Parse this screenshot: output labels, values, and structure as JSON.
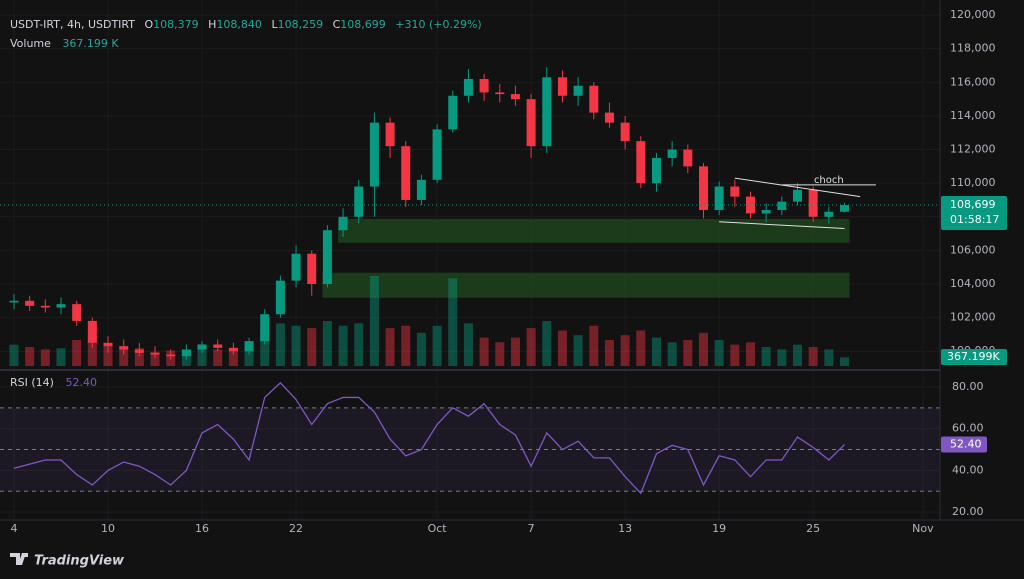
{
  "header": {
    "symbol": "USDT-IRT, 4h, USDTIRT",
    "open_label": "O",
    "open": "108,379",
    "high_label": "H",
    "high": "108,840",
    "low_label": "L",
    "low": "108,259",
    "close_label": "C",
    "close": "108,699",
    "change": "+310 (+0.29%)",
    "volume_label": "Volume",
    "volume_value": "367.199 K"
  },
  "chart_data": [
    {
      "type": "candlestick",
      "categories": [
        "4",
        null,
        null,
        null,
        null,
        null,
        "10",
        null,
        null,
        null,
        null,
        null,
        "16",
        null,
        null,
        null,
        null,
        null,
        "22",
        null,
        null,
        null,
        null,
        null,
        null,
        null,
        null,
        "Oct",
        null,
        null,
        null,
        null,
        null,
        "7",
        null,
        null,
        null,
        null,
        null,
        "13",
        null,
        null,
        null,
        null,
        null,
        "19",
        null,
        null,
        null,
        null,
        null,
        "25",
        null,
        null,
        null,
        null,
        null,
        null,
        "Nov"
      ],
      "open": [
        102900,
        103000,
        102700,
        102600,
        102800,
        101800,
        100500,
        100300,
        100100,
        99900,
        99800,
        99700,
        100100,
        100400,
        100200,
        100000,
        100600,
        102200,
        104200,
        105800,
        104000,
        107200,
        108000,
        109800,
        113600,
        112200,
        109000,
        110200,
        113200,
        115200,
        116200,
        115400,
        115300,
        115000,
        112200,
        116300,
        115200,
        115800,
        114200,
        113600,
        112500,
        110000,
        111500,
        112000,
        111000,
        108400,
        109800,
        109200,
        108200,
        108400,
        108900,
        109600,
        108000,
        108300,
        null,
        null,
        null,
        null,
        null
      ],
      "high": [
        103400,
        103300,
        103100,
        103200,
        103000,
        102000,
        100900,
        100700,
        100500,
        100300,
        100100,
        100400,
        100600,
        100700,
        100500,
        100800,
        102500,
        104500,
        106300,
        106000,
        107500,
        108500,
        110200,
        114200,
        113900,
        112500,
        110500,
        113500,
        115500,
        116800,
        116500,
        115900,
        115800,
        115300,
        116900,
        116700,
        116300,
        116000,
        114800,
        114000,
        112800,
        111800,
        112500,
        112300,
        111200,
        110100,
        110200,
        109500,
        108800,
        109200,
        110000,
        109800,
        108600,
        108840,
        null,
        null,
        null,
        null,
        null
      ],
      "low": [
        102500,
        102400,
        102300,
        102200,
        101500,
        100200,
        99900,
        99800,
        99700,
        99600,
        99500,
        99500,
        99900,
        100000,
        99800,
        99800,
        100400,
        102000,
        103800,
        103300,
        103800,
        106800,
        107600,
        108000,
        111500,
        108600,
        108700,
        110000,
        113000,
        114800,
        114900,
        114800,
        114600,
        111500,
        111800,
        114800,
        114600,
        113800,
        113300,
        112000,
        109700,
        109500,
        111000,
        110600,
        107900,
        108100,
        108600,
        107900,
        107700,
        108100,
        108700,
        107700,
        107600,
        108259,
        null,
        null,
        null,
        null,
        null
      ],
      "close": [
        103000,
        102700,
        102600,
        102800,
        101800,
        100500,
        100300,
        100100,
        99900,
        99800,
        99700,
        100100,
        100400,
        100200,
        100000,
        100600,
        102200,
        104200,
        105800,
        104000,
        107200,
        108000,
        109800,
        113600,
        112200,
        109000,
        110200,
        113200,
        115200,
        116200,
        115400,
        115300,
        115000,
        112200,
        116300,
        115200,
        115800,
        114200,
        113600,
        112500,
        110000,
        111500,
        112000,
        111000,
        108400,
        109800,
        109200,
        108200,
        108400,
        108900,
        109600,
        108000,
        108300,
        108699,
        null,
        null,
        null,
        null,
        null
      ],
      "volume": [
        900,
        800,
        700,
        750,
        1100,
        1300,
        900,
        700,
        750,
        600,
        650,
        700,
        800,
        700,
        650,
        800,
        1500,
        1800,
        1700,
        1600,
        1900,
        1700,
        1800,
        3800,
        1600,
        1700,
        1400,
        1700,
        3700,
        1800,
        1200,
        1000,
        1200,
        1600,
        1900,
        1500,
        1300,
        1700,
        1100,
        1300,
        1500,
        1200,
        1000,
        1100,
        1400,
        1100,
        900,
        1000,
        800,
        700,
        900,
        800,
        700,
        367.199,
        null,
        null,
        null,
        null,
        null
      ],
      "up_color": "#089981",
      "down_color": "#f23645",
      "ylim": [
        99000,
        120900
      ],
      "yticks": [
        {
          "value": 100000,
          "label": "100,000"
        },
        {
          "value": 102000,
          "label": "102,000"
        },
        {
          "value": 104000,
          "label": "104,000"
        },
        {
          "value": 106000,
          "label": "106,000"
        },
        {
          "value": 108000,
          "label": "108,000"
        },
        {
          "value": 110000,
          "label": "110,000"
        },
        {
          "value": 112000,
          "label": "112,000"
        },
        {
          "value": 114000,
          "label": "114,000"
        },
        {
          "value": 116000,
          "label": "116,000"
        },
        {
          "value": 118000,
          "label": "118,000"
        },
        {
          "value": 120000,
          "label": "120,000"
        }
      ],
      "last_price_label": "108,699",
      "countdown": "01:58:17",
      "volume_axis_label": "367.199K",
      "zones": [
        {
          "start": 21,
          "end": 53,
          "low": 106450,
          "high": 107870
        },
        {
          "start": 20,
          "end": 53,
          "low": 103180,
          "high": 104670
        }
      ],
      "trendlines": [
        {
          "start": 46,
          "end": 54,
          "from": 110300,
          "to": 109200
        },
        {
          "start": 45,
          "end": 53,
          "from": 107700,
          "to": 107300
        }
      ],
      "annotation": {
        "text": "choch",
        "start": 49,
        "end": 55,
        "price": 109900
      }
    },
    {
      "type": "line",
      "title": "RSI (14)",
      "value_label": "52.40",
      "color": "#7e57c2",
      "values": [
        41,
        43,
        45,
        45,
        38,
        33,
        40,
        44,
        42,
        38,
        33,
        40,
        58,
        62,
        55,
        45,
        75,
        82,
        74,
        62,
        72,
        75,
        75,
        68,
        55,
        47,
        50,
        62,
        70,
        66,
        72,
        62,
        57,
        42,
        58,
        50,
        54,
        46,
        46,
        37,
        29,
        48,
        52,
        50,
        33,
        47,
        45,
        37,
        45,
        45,
        56,
        51,
        45,
        52.4,
        null,
        null,
        null,
        null,
        null
      ],
      "ylim": [
        16.2,
        87.2
      ],
      "yticks": [
        {
          "value": 20,
          "label": "20.00"
        },
        {
          "value": 40,
          "label": "40.00"
        },
        {
          "value": 60,
          "label": "60.00"
        },
        {
          "value": 80,
          "label": "80.00"
        }
      ],
      "levels": [
        30,
        50,
        70
      ]
    }
  ],
  "footer": {
    "brand": "TradingView"
  }
}
